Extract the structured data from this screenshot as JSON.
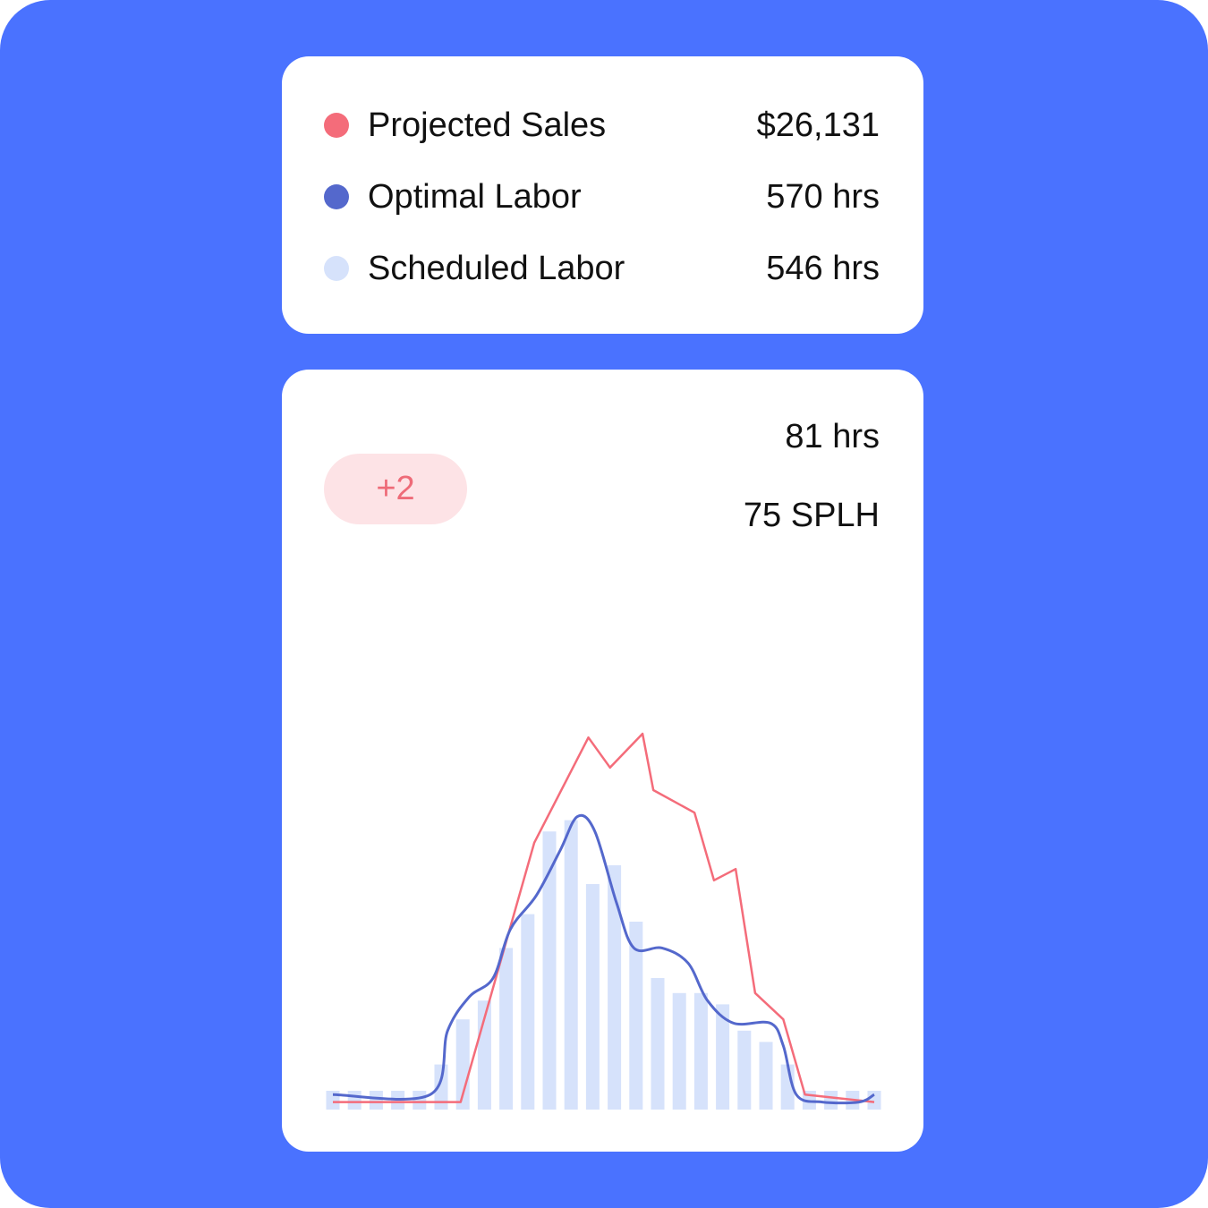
{
  "legend": {
    "items": [
      {
        "label": "Projected Sales",
        "value": "$26,131",
        "color": "#F46C7A"
      },
      {
        "label": "Optimal Labor",
        "value": "570 hrs",
        "color": "#5468CC"
      },
      {
        "label": "Scheduled Labor",
        "value": "546 hrs",
        "color": "#D6E2FB"
      }
    ]
  },
  "summary": {
    "badge": "+2",
    "hours": "81 hrs",
    "splh": "75 SPLH"
  },
  "colors": {
    "background": "#4A72FF",
    "badge_bg": "#FDE3E6",
    "badge_text": "#EE6B78"
  },
  "chart_data": {
    "type": "bar",
    "grid": false,
    "ylim": [
      0,
      100
    ],
    "series": [
      {
        "name": "Scheduled Labor",
        "kind": "bar",
        "color": "#D6E2FB",
        "values": [
          5,
          5,
          5,
          5,
          5,
          12,
          24,
          29,
          43,
          52,
          74,
          77,
          60,
          65,
          50,
          35,
          31,
          31,
          28,
          21,
          18,
          12,
          5,
          5,
          5,
          5
        ]
      },
      {
        "name": "Projected Sales",
        "kind": "line",
        "color": "#F46C7A",
        "points": [
          [
            0,
            2
          ],
          [
            5.9,
            2
          ],
          [
            9.3,
            71
          ],
          [
            11.8,
            99
          ],
          [
            12.8,
            91
          ],
          [
            14.3,
            100
          ],
          [
            14.8,
            85
          ],
          [
            16.7,
            79
          ],
          [
            17.6,
            61
          ],
          [
            18.6,
            64
          ],
          [
            19.5,
            31
          ],
          [
            20.8,
            24
          ],
          [
            21.8,
            4
          ],
          [
            25,
            2
          ]
        ]
      },
      {
        "name": "Optimal Labor",
        "kind": "smooth-line",
        "color": "#5468CC",
        "points": [
          [
            0,
            4
          ],
          [
            4.5,
            4
          ],
          [
            5.3,
            21
          ],
          [
            6.3,
            30
          ],
          [
            7.4,
            35
          ],
          [
            8.2,
            48
          ],
          [
            9.4,
            57
          ],
          [
            10.5,
            69
          ],
          [
            11.3,
            78
          ],
          [
            12.1,
            74
          ],
          [
            13.1,
            55
          ],
          [
            13.9,
            43
          ],
          [
            15.2,
            43
          ],
          [
            16.4,
            39
          ],
          [
            17.3,
            29
          ],
          [
            18.5,
            23
          ],
          [
            20.2,
            23
          ],
          [
            20.8,
            17
          ],
          [
            21.4,
            4
          ],
          [
            22.6,
            2
          ],
          [
            24.3,
            2
          ],
          [
            25,
            4
          ]
        ]
      }
    ]
  }
}
